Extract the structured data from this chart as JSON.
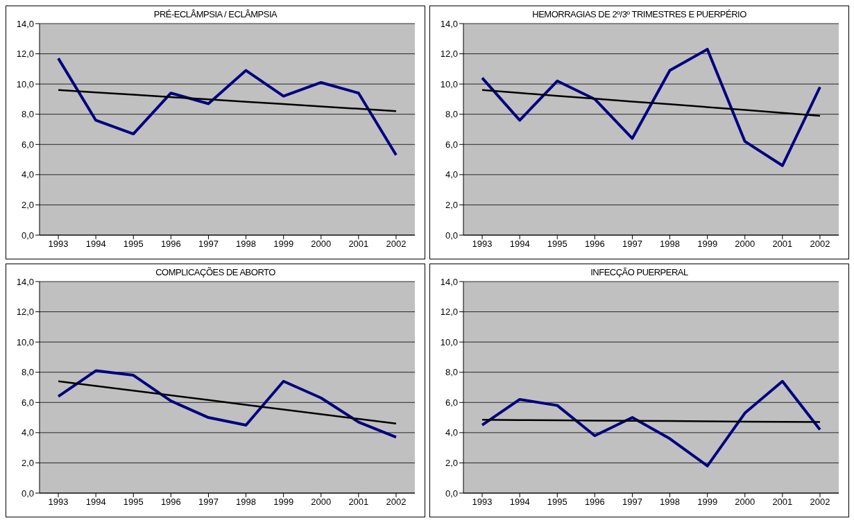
{
  "chart_data": [
    {
      "type": "line",
      "title": "PRÉ-ECLÂMPSIA / ECLÂMPSIA",
      "categories": [
        "1993",
        "1994",
        "1995",
        "1996",
        "1997",
        "1998",
        "1999",
        "2000",
        "2001",
        "2002"
      ],
      "ylim": [
        0,
        14
      ],
      "yticks": [
        {
          "value": 0,
          "label": "0,0"
        },
        {
          "value": 2,
          "label": "2,0"
        },
        {
          "value": 4,
          "label": "4,0"
        },
        {
          "value": 6,
          "label": "6,0"
        },
        {
          "value": 8,
          "label": "8,0"
        },
        {
          "value": 10,
          "label": "10,0"
        },
        {
          "value": 12,
          "label": "12,0"
        },
        {
          "value": 14,
          "label": "14,0"
        }
      ],
      "grid": "y",
      "marker": "none",
      "line_style": "solid",
      "series": [
        {
          "color": "#000080",
          "values": [
            11.7,
            7.6,
            6.7,
            9.4,
            8.7,
            10.9,
            9.2,
            10.1,
            9.4,
            5.3
          ]
        },
        {
          "type": "line",
          "color": "#000000",
          "values": [
            9.6,
            9.44,
            9.29,
            9.13,
            8.98,
            8.82,
            8.67,
            8.51,
            8.36,
            8.2
          ]
        }
      ]
    },
    {
      "type": "line",
      "title": "HEMORRAGIAS DE 2º/3º TRIMESTRES E PUERPÉRIO",
      "categories": [
        "1993",
        "1994",
        "1995",
        "1996",
        "1997",
        "1998",
        "1999",
        "2000",
        "2001",
        "2002"
      ],
      "ylim": [
        0,
        14
      ],
      "yticks": [
        {
          "value": 0,
          "label": "0,0"
        },
        {
          "value": 2,
          "label": "2,0"
        },
        {
          "value": 4,
          "label": "4,0"
        },
        {
          "value": 6,
          "label": "6,0"
        },
        {
          "value": 8,
          "label": "8,0"
        },
        {
          "value": 10,
          "label": "10,0"
        },
        {
          "value": 12,
          "label": "12,0"
        },
        {
          "value": 14,
          "label": "14,0"
        }
      ],
      "grid": "y",
      "marker": "none",
      "line_style": "solid",
      "series": [
        {
          "color": "#000080",
          "values": [
            10.4,
            7.6,
            10.2,
            9.0,
            6.4,
            10.9,
            12.3,
            6.2,
            4.6,
            9.8
          ]
        },
        {
          "type": "line",
          "color": "#000000",
          "values": [
            9.6,
            9.41,
            9.22,
            9.03,
            8.84,
            8.66,
            8.47,
            8.28,
            8.09,
            7.9
          ]
        }
      ]
    },
    {
      "type": "line",
      "title": "COMPLICAÇÕES DE ABORTO",
      "categories": [
        "1993",
        "1994",
        "1995",
        "1996",
        "1997",
        "1998",
        "1999",
        "2000",
        "2001",
        "2002"
      ],
      "ylim": [
        0,
        14
      ],
      "yticks": [
        {
          "value": 0,
          "label": "0,0"
        },
        {
          "value": 2,
          "label": "2,0"
        },
        {
          "value": 4,
          "label": "4,0"
        },
        {
          "value": 6,
          "label": "6,0"
        },
        {
          "value": 8,
          "label": "8,0"
        },
        {
          "value": 10,
          "label": "10,0"
        },
        {
          "value": 12,
          "label": "12,0"
        },
        {
          "value": 14,
          "label": "14,0"
        }
      ],
      "grid": "y",
      "marker": "none",
      "line_style": "solid",
      "series": [
        {
          "color": "#000080",
          "values": [
            6.4,
            8.1,
            7.8,
            6.1,
            5.0,
            4.5,
            7.4,
            6.3,
            4.7,
            3.7
          ]
        },
        {
          "type": "line",
          "color": "#000000",
          "values": [
            7.4,
            7.09,
            6.78,
            6.47,
            6.16,
            5.84,
            5.53,
            5.22,
            4.91,
            4.6
          ]
        }
      ]
    },
    {
      "type": "line",
      "title": "INFECÇÃO PUERPERAL",
      "categories": [
        "1993",
        "1994",
        "1995",
        "1996",
        "1997",
        "1998",
        "1999",
        "2000",
        "2001",
        "2002"
      ],
      "ylim": [
        0,
        14
      ],
      "yticks": [
        {
          "value": 0,
          "label": "0,0"
        },
        {
          "value": 2,
          "label": "2,0"
        },
        {
          "value": 4,
          "label": "4,0"
        },
        {
          "value": 6,
          "label": "6,0"
        },
        {
          "value": 8,
          "label": "8,0"
        },
        {
          "value": 10,
          "label": "10,0"
        },
        {
          "value": 12,
          "label": "12,0"
        },
        {
          "value": 14,
          "label": "14,0"
        }
      ],
      "grid": "y",
      "marker": "none",
      "line_style": "solid",
      "series": [
        {
          "color": "#000080",
          "values": [
            4.5,
            6.2,
            5.8,
            3.8,
            5.0,
            3.6,
            1.8,
            5.3,
            7.4,
            4.2
          ]
        },
        {
          "type": "line",
          "color": "#000000",
          "values": [
            4.85,
            4.83,
            4.82,
            4.8,
            4.78,
            4.77,
            4.75,
            4.73,
            4.72,
            4.7
          ]
        }
      ]
    }
  ]
}
